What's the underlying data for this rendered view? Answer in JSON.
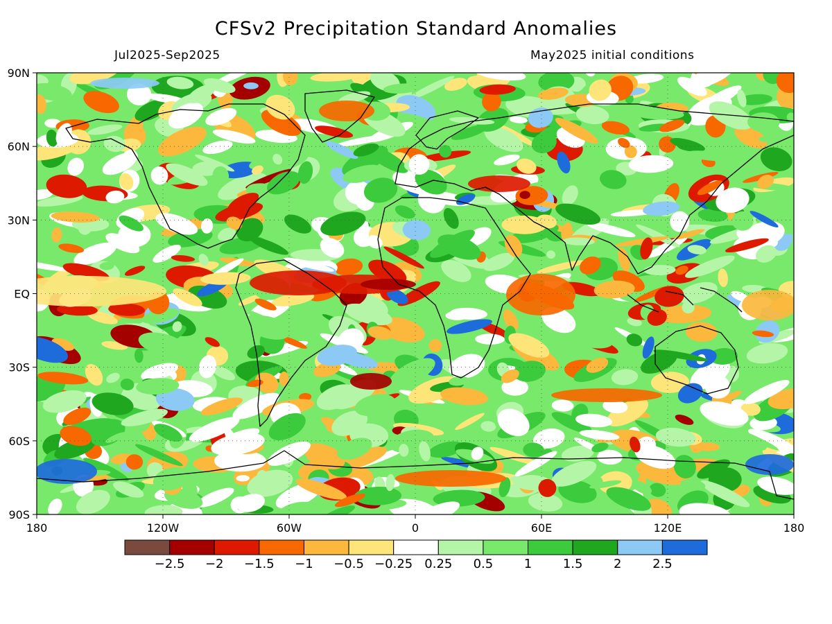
{
  "title": "CFSv2 Precipitation Standard Anomalies",
  "period": "Jul2025-Sep2025",
  "initial_conditions": "May2025 initial conditions",
  "map": {
    "lon_ticks": [
      "180",
      "120W",
      "60W",
      "0",
      "60E",
      "120E",
      "180"
    ],
    "lat_ticks": [
      "90N",
      "60N",
      "30N",
      "EQ",
      "30S",
      "60S",
      "90S"
    ]
  },
  "colorbar": {
    "colors": [
      "#7a4a3f",
      "#a50000",
      "#dd1a00",
      "#f76800",
      "#fbb83d",
      "#fde57a",
      "#ffffff",
      "#b5f5a8",
      "#79e96b",
      "#3ccb3c",
      "#1fa81f",
      "#8ccaf5",
      "#1e6bdc"
    ],
    "labels": [
      "-2.5",
      "-2",
      "-1.5",
      "-1",
      "-0.5",
      "-0.25",
      "0.25",
      "0.5",
      "1",
      "1.5",
      "2",
      "2.5"
    ]
  }
}
